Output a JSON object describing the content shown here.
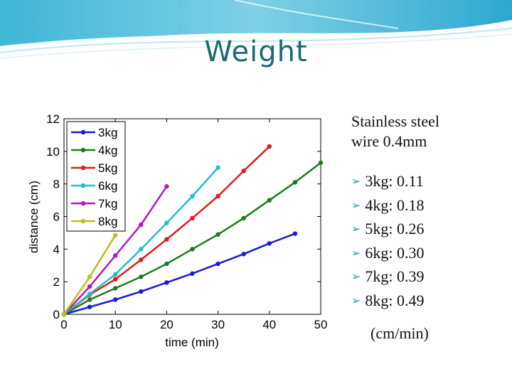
{
  "slide": {
    "title": "Weight",
    "subtitle_lines": [
      "Stainless steel",
      "wire 0.4mm"
    ],
    "rates": [
      {
        "label": "3kg:",
        "value": "0.11"
      },
      {
        "label": "4kg:",
        "value": "0.18"
      },
      {
        "label": "5kg:",
        "value": "0.26"
      },
      {
        "label": "6kg:",
        "value": "0.30"
      },
      {
        "label": "7kg:",
        "value": "0.39"
      },
      {
        "label": "8kg:",
        "value": "0.49"
      }
    ],
    "units": "(cm/min)",
    "bullet_icon": "arrow-bullet-icon",
    "accent_color": "#2a9bb0",
    "title_color": "#1c6a78"
  },
  "chart_data": {
    "type": "line",
    "title": "",
    "xlabel": "time (min)",
    "ylabel": "distance (cm)",
    "xlim": [
      0,
      50
    ],
    "ylim": [
      0,
      12
    ],
    "xticks": [
      0,
      10,
      20,
      30,
      40,
      50
    ],
    "yticks": [
      0,
      2,
      4,
      6,
      8,
      10,
      12
    ],
    "legend_position": "top-left",
    "grid": false,
    "series": [
      {
        "name": "3kg",
        "color": "#1a1adb",
        "x": [
          0,
          5,
          10,
          15,
          20,
          25,
          30,
          35,
          40,
          45
        ],
        "y": [
          0,
          0.45,
          0.9,
          1.4,
          1.95,
          2.5,
          3.1,
          3.7,
          4.35,
          4.95
        ]
      },
      {
        "name": "4kg",
        "color": "#1e7a1e",
        "x": [
          0,
          5,
          10,
          15,
          20,
          25,
          30,
          35,
          40,
          45,
          50
        ],
        "y": [
          0,
          0.9,
          1.6,
          2.3,
          3.1,
          4.0,
          4.9,
          5.9,
          7.0,
          8.1,
          9.3
        ]
      },
      {
        "name": "5kg",
        "color": "#e11a1a",
        "x": [
          0,
          5,
          10,
          15,
          20,
          25,
          30,
          35,
          40
        ],
        "y": [
          0,
          1.2,
          2.15,
          3.35,
          4.6,
          5.9,
          7.25,
          8.8,
          10.3
        ]
      },
      {
        "name": "6kg",
        "color": "#1fbfc9",
        "x": [
          0,
          5,
          10,
          15,
          20,
          25,
          30
        ],
        "y": [
          0,
          1.25,
          2.45,
          4.0,
          5.6,
          7.25,
          9.0
        ]
      },
      {
        "name": "7kg",
        "color": "#b21ab8",
        "x": [
          0,
          5,
          10,
          15,
          20
        ],
        "y": [
          0,
          1.7,
          3.6,
          5.5,
          7.85
        ]
      },
      {
        "name": "8kg",
        "color": "#bdbd1c",
        "x": [
          0,
          5,
          10
        ],
        "y": [
          0,
          2.3,
          4.85
        ]
      }
    ]
  }
}
